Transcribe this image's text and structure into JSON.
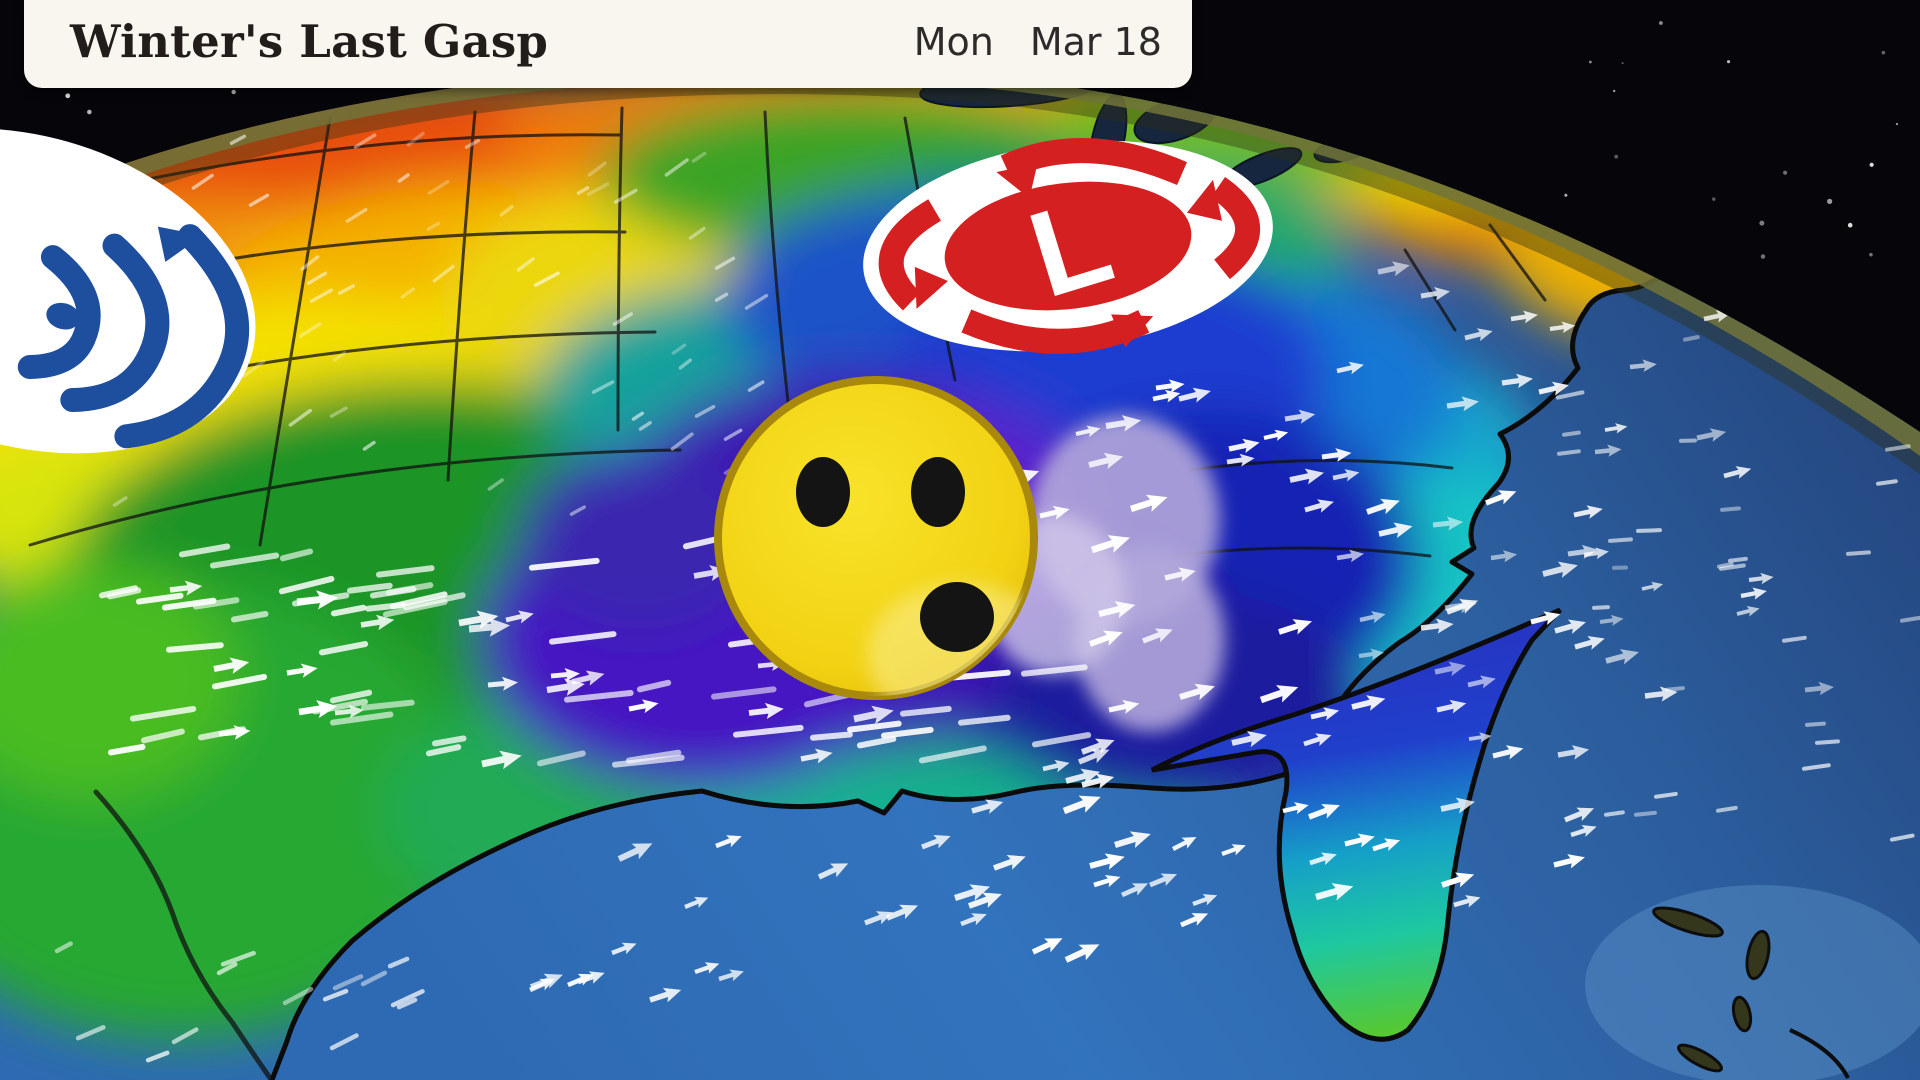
{
  "banner": {
    "title": "Winter's Last Gasp",
    "day": "Mon",
    "date": "Mar 18"
  },
  "symbols": {
    "low_pressure_letter": "L",
    "low_pressure_meaning": "low-pressure-system",
    "cyclone_swirl_meaning": "storm-circulation",
    "face_meaning": "cold-whistling-wind-face"
  },
  "colors": {
    "banner_bg": "#f9f6f0",
    "banner_text": "#221d1b",
    "low_pressure_red": "#d42020",
    "cyclone_blue": "#1e4f9e",
    "face_yellow": "#f2d213",
    "face_outline": "#a8890b",
    "frost_lavender": "#b3a7da",
    "ocean_blue": "#2e66ad",
    "space_black": "#06060a",
    "wind_arrow_white": "#ffffff"
  }
}
